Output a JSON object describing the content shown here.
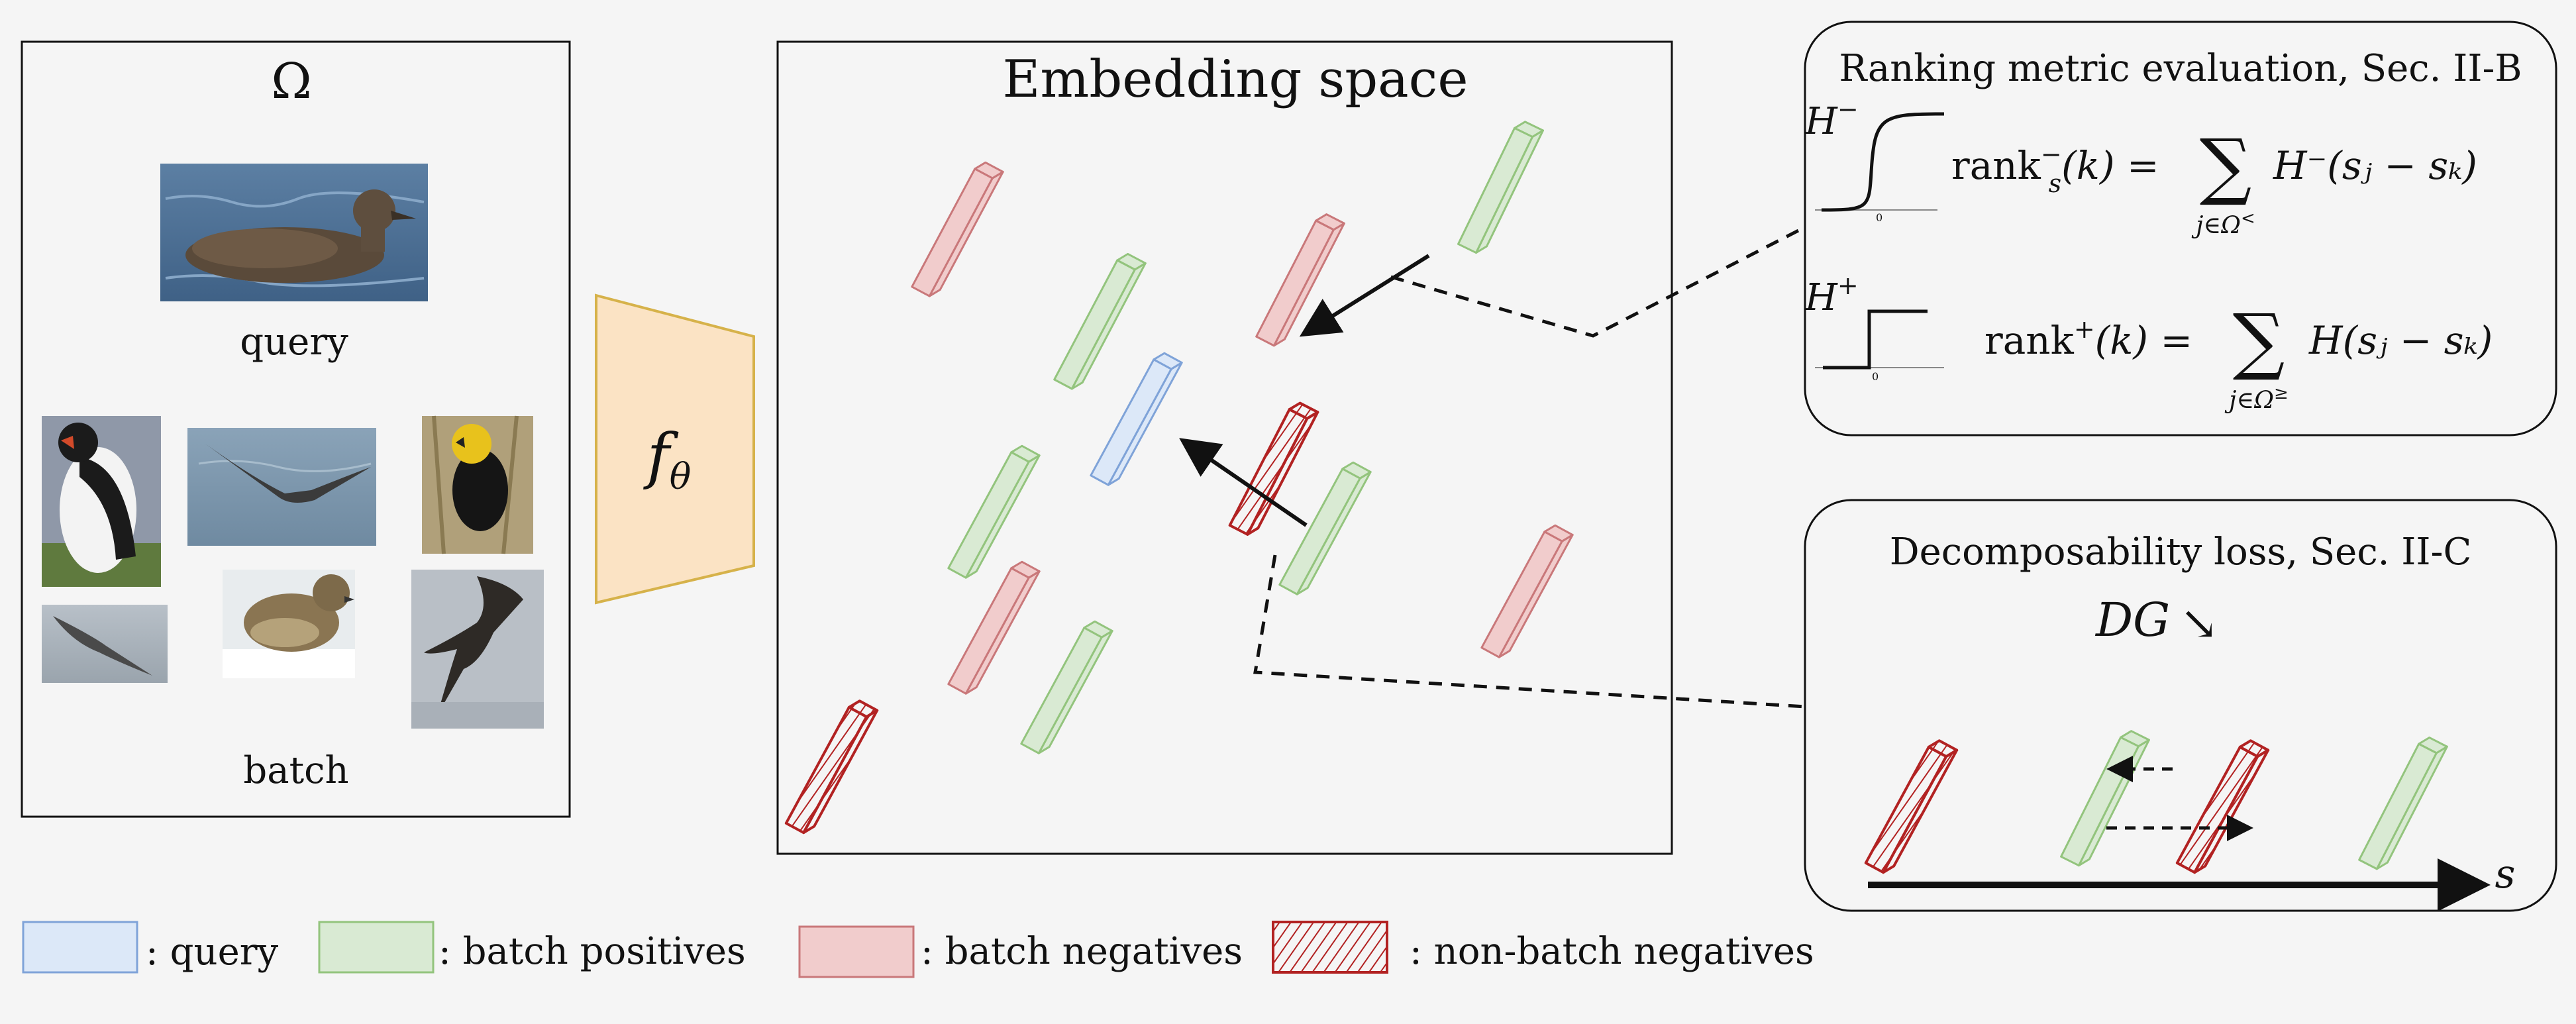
{
  "omega_panel": {
    "title": "Ω",
    "query_label": "query",
    "batch_label": "batch"
  },
  "encoder": {
    "label": "f",
    "subscript": "θ"
  },
  "embedding_panel": {
    "title": "Embedding space"
  },
  "ranking_panel": {
    "title": "Ranking metric evaluation, Sec. II-B",
    "hminus_label": "H",
    "hminus_sup": "−",
    "hplus_label": "H",
    "hplus_sup": "+",
    "tick_zero": "0",
    "eq1_lhs": "rank",
    "eq1_lhs_sup": "−",
    "eq1_lhs_sub": "s",
    "eq1_arg": "(k) =",
    "eq1_sum_sub": "j∈Ω",
    "eq1_sum_sub_sup": "<",
    "eq1_rhs": "H⁻(sⱼ − sₖ)",
    "eq2_lhs": "rank",
    "eq2_lhs_sup": "+",
    "eq2_arg": "(k) =",
    "eq2_sum_sub": "j∈Ω",
    "eq2_sum_sub_sup": "≥",
    "eq2_rhs": "H(sⱼ − sₖ)"
  },
  "decomp_panel": {
    "title": "Decomposability loss, Sec. II-C",
    "dg_label": "DG",
    "dg_arrow": "↘",
    "axis_label": "s"
  },
  "legend": {
    "query": ": query",
    "positives": ": batch positives",
    "negatives": ": batch negatives",
    "nonbatch": ": non-batch negatives"
  },
  "colors": {
    "query_fill": "#dce8f8",
    "query_stroke": "#7fa3d8",
    "positive_fill": "#d9ead3",
    "positive_stroke": "#93c47d",
    "negative_fill": "#f1cccc",
    "negative_stroke": "#c9787a",
    "nonbatch_stroke": "#b22222",
    "encoder_fill": "#fbe3c4",
    "encoder_stroke": "#d6b24a"
  },
  "icons": [
    "bird-photo-albatross-swimming",
    "bird-photo-puffin",
    "bird-photo-seabird-flying",
    "bird-photo-blackbird-yellow-head",
    "bird-photo-flying-small",
    "bird-photo-sparrow",
    "bird-photo-albatross-flying"
  ]
}
